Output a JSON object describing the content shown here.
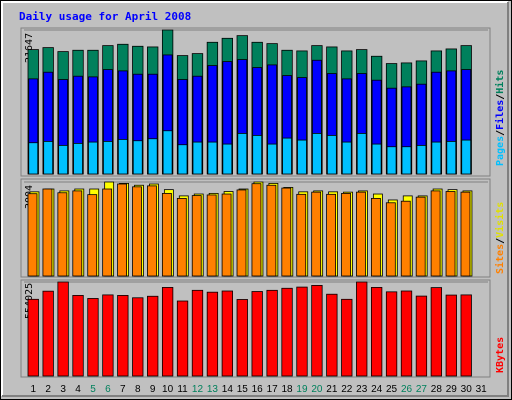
{
  "chart_data": {
    "type": "bar",
    "title": "Daily usage for April 2008",
    "x": [
      "1",
      "2",
      "3",
      "4",
      "5",
      "6",
      "7",
      "8",
      "9",
      "10",
      "11",
      "12",
      "13",
      "14",
      "15",
      "16",
      "17",
      "18",
      "19",
      "20",
      "21",
      "22",
      "23",
      "24",
      "25",
      "26",
      "27",
      "28",
      "29",
      "30",
      "31"
    ],
    "weekend_days": [
      5,
      6,
      12,
      13,
      19,
      20,
      26,
      27
    ],
    "panels": [
      {
        "id": "hits",
        "max_label": "21647",
        "ymax": 21647,
        "series": [
          {
            "name": "Hits",
            "color": "#00805c",
            "values": [
              18700,
              19000,
              18400,
              18600,
              18600,
              19300,
              19500,
              19200,
              19100,
              21647,
              17800,
              18100,
              19800,
              20400,
              20800,
              19800,
              19600,
              18600,
              18500,
              19300,
              19100,
              18500,
              18700,
              17700,
              16600,
              16700,
              17000,
              18500,
              18800,
              19300,
              null
            ]
          },
          {
            "name": "Files",
            "color": "#0000ff",
            "values": [
              14300,
              15300,
              14200,
              14700,
              14600,
              15700,
              15500,
              15000,
              15000,
              17900,
              14200,
              14700,
              16300,
              16900,
              17200,
              16000,
              16400,
              14800,
              14500,
              17100,
              15100,
              14300,
              15100,
              14100,
              12900,
              13100,
              13500,
              15300,
              15500,
              15700,
              null
            ]
          },
          {
            "name": "Pages",
            "color": "#00c0ff",
            "values": [
              4700,
              4900,
              4300,
              4600,
              4800,
              4900,
              5200,
              5000,
              5300,
              6500,
              4400,
              4800,
              4800,
              4500,
              6100,
              5800,
              4500,
              5400,
              5100,
              6100,
              5800,
              4800,
              6100,
              4500,
              4100,
              4100,
              4300,
              4800,
              4900,
              5100,
              null
            ]
          }
        ]
      },
      {
        "id": "visits",
        "max_label": "3004",
        "ymax": 3004,
        "series": [
          {
            "name": "Visits",
            "color": "#ffff00",
            "values": [
              2690,
              2780,
              2720,
              2780,
              2780,
              3004,
              2960,
              2900,
              2940,
              2760,
              2560,
              2620,
              2640,
              2700,
              2780,
              3004,
              2960,
              2830,
              2690,
              2720,
              2690,
              2680,
              2720,
              2620,
              2430,
              2560,
              2560,
              2780,
              2760,
              2720,
              null
            ]
          },
          {
            "name": "Sites",
            "color": "#ff8000",
            "values": [
              2630,
              2780,
              2660,
              2720,
              2600,
              2780,
              2940,
              2850,
              2880,
              2640,
              2480,
              2570,
              2590,
              2620,
              2750,
              2950,
              2900,
              2810,
              2610,
              2680,
              2610,
              2640,
              2680,
              2480,
              2340,
              2390,
              2520,
              2720,
              2700,
              2680,
              null
            ]
          }
        ]
      },
      {
        "id": "kbytes",
        "max_label": "554025",
        "ymax": 554025,
        "series": [
          {
            "name": "KBytes",
            "color": "#ff0000",
            "values": [
              452000,
              500000,
              554025,
              475000,
              457000,
              478000,
              475000,
              461000,
              470000,
              522000,
              442000,
              505000,
              494000,
              501000,
              451000,
              498000,
              505000,
              517000,
              524000,
              534000,
              482000,
              452000,
              554025,
              522000,
              496000,
              501000,
              471000,
              521000,
              477000,
              478000,
              null
            ]
          }
        ]
      }
    ],
    "right_labels": {
      "top": [
        "Pages",
        "/",
        "Files",
        "/",
        "Hits"
      ],
      "middle": [
        "Sites",
        "/",
        "Visits"
      ],
      "bottom": [
        "KBytes"
      ]
    },
    "colors": {
      "background": "#c0c0c0",
      "title": "#0000ff",
      "weekday_label": "#000000",
      "weekend_label": "#00805c",
      "separator": "#0000ff",
      "pages": "#00c0ff",
      "files": "#0000ff",
      "hits": "#00805c",
      "sites": "#ff8000",
      "visits": "#ffff00",
      "kbytes": "#ff0000"
    }
  }
}
